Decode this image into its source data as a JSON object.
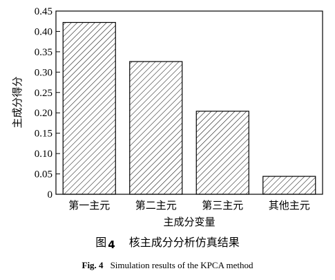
{
  "chart_data": {
    "type": "bar",
    "categories": [
      "第一主元",
      "第二主元",
      "第三主元",
      "其他主元"
    ],
    "values": [
      0.422,
      0.326,
      0.204,
      0.044
    ],
    "xlabel": "主成分变量",
    "ylabel": "主成分得分",
    "ylim": [
      0,
      0.45
    ],
    "yticks": [
      0,
      0.05,
      0.1,
      0.15,
      0.2,
      0.25,
      0.3,
      0.35,
      0.4,
      0.45
    ],
    "ytick_labels": [
      "0",
      "0.05",
      "0.10",
      "0.15",
      "0.20",
      "0.25",
      "0.30",
      "0.35",
      "0.40",
      "0.45"
    ],
    "grid": false,
    "bar_fill": "diagonal-hatch",
    "colors": {
      "stroke": "#000000",
      "background": "#ffffff"
    }
  },
  "caption": {
    "cn_prefix": "图",
    "cn_number": "4",
    "cn_title": "核主成分分析仿真结果",
    "en_label": "Fig. 4",
    "en_title": "Simulation results of the KPCA method"
  }
}
